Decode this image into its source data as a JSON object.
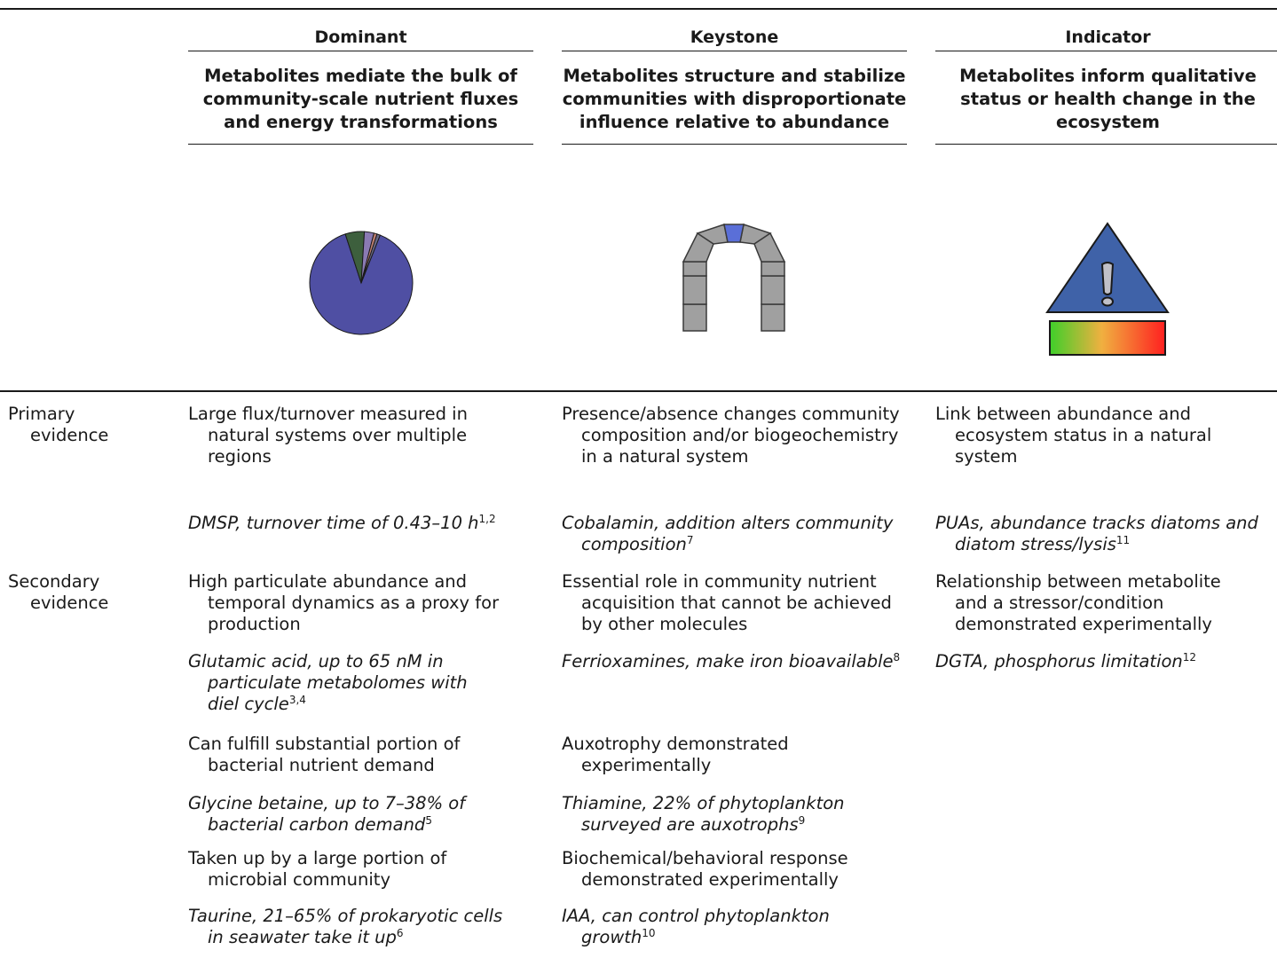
{
  "top_strip_text": "",
  "columns": [
    {
      "name": "Dominant",
      "description": "Metabolites mediate the bulk of community-scale nutrient fluxes and energy transformations",
      "icon": "pie-chart-icon"
    },
    {
      "name": "Keystone",
      "description": "Metabolites structure and stabilize communities with disproportionate influence relative to abundance",
      "icon": "keystone-arch-icon"
    },
    {
      "name": "Indicator",
      "description": "Metabolites inform qualitative status or health change in the ecosystem",
      "icon": "warning-indicator-icon"
    }
  ],
  "pie_slices": [
    {
      "value": 89,
      "color": "#4f4fa3"
    },
    {
      "value": 6,
      "color": "#3d5f3d"
    },
    {
      "value": 3,
      "color": "#8a7ab3"
    },
    {
      "value": 1,
      "color": "#c08070"
    },
    {
      "value": 1,
      "color": "#6a6a8a"
    }
  ],
  "colors": {
    "pie_main": "#4f4fa3",
    "keystone": "#5a6fd8",
    "arch_stone": "#a0a0a0",
    "warning_triangle": "#3f62a8"
  },
  "rows": [
    {
      "label_1": "Primary",
      "label_2": "evidence",
      "dominant": {
        "criterion": "Large flux/turnover measured in natural systems over multiple regions",
        "example": "DMSP, turnover time of 0.43–10 h",
        "ref": "1,2"
      },
      "keystone": {
        "criterion": "Presence/absence changes community composition and/or biogeochemistry in a natural system",
        "example": "Cobalamin, addition alters community composition",
        "ref": "7"
      },
      "indicator": {
        "criterion": "Link between abundance and ecosystem status in a natural system",
        "example": "PUAs, abundance tracks diatoms and diatom stress/lysis",
        "ref": "11"
      }
    },
    {
      "label_1": "Secondary",
      "label_2": "evidence",
      "dominant": [
        {
          "criterion": "High particulate abundance and temporal dynamics as a proxy for production",
          "example": "Glutamic acid, up to 65 nM in particulate metabolomes with diel cycle",
          "ref": "3,4"
        },
        {
          "criterion": "Can fulfill substantial portion of bacterial nutrient demand",
          "example": "Glycine betaine, up to 7–38% of bacterial carbon demand",
          "ref": "5"
        },
        {
          "criterion": "Taken up by a large portion of microbial community",
          "example": "Taurine, 21–65% of prokaryotic cells in seawater take it up",
          "ref": "6"
        }
      ],
      "keystone": [
        {
          "criterion": "Essential role in community nutrient acquisition that cannot be achieved by other molecules",
          "example": "Ferrioxamines, make iron bioavailable",
          "ref": "8"
        },
        {
          "criterion": "Auxotrophy demonstrated experimentally",
          "example": "Thiamine, 22% of phytoplankton surveyed are auxotrophs",
          "ref": "9"
        },
        {
          "criterion": "Biochemical/behavioral response demonstrated experimentally",
          "example": "IAA, can control phytoplankton growth",
          "ref": "10"
        }
      ],
      "indicator": [
        {
          "criterion": "Relationship between metabolite and a stressor/condition demonstrated experimentally",
          "example": "DGTA, phosphorus limitation",
          "ref": "12"
        }
      ]
    }
  ]
}
